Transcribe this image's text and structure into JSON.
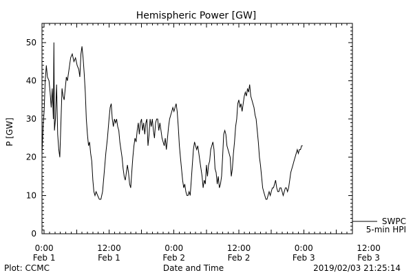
{
  "chart_data": {
    "type": "line",
    "title": "Hemispheric Power [GW]",
    "ylabel": "P [GW]",
    "xlabel": "Date and Time",
    "ylim": [
      0,
      55
    ],
    "yticks": [
      0,
      10,
      20,
      30,
      40,
      50
    ],
    "xlim": [
      -0.4,
      57.0
    ],
    "x_units": "hours since 2019-02-01 00:00",
    "xticks": [
      {
        "x": 0,
        "time": "0:00",
        "date": "Feb 1"
      },
      {
        "x": 12,
        "time": "12:00",
        "date": "Feb 1"
      },
      {
        "x": 24,
        "time": "0:00",
        "date": "Feb 2"
      },
      {
        "x": 36,
        "time": "12:00",
        "date": "Feb 2"
      },
      {
        "x": 48,
        "time": "0:00",
        "date": "Feb 3"
      },
      {
        "x": 60,
        "time": "12:00",
        "date": "Feb 3"
      }
    ],
    "grid": false,
    "legend_lines": [
      "SWPC",
      "5-min HPI"
    ],
    "footer_left": "Plot: CCMC",
    "footer_right": "2019/02/03 21:25:14",
    "series": [
      {
        "name": "SWPC",
        "points": [
          [
            -0.4,
            21
          ],
          [
            -0.2,
            28
          ],
          [
            0.0,
            32
          ],
          [
            0.2,
            40
          ],
          [
            0.4,
            44
          ],
          [
            0.6,
            41
          ],
          [
            0.9,
            40
          ],
          [
            1.1,
            37
          ],
          [
            1.3,
            33
          ],
          [
            1.5,
            38
          ],
          [
            1.7,
            30
          ],
          [
            1.8,
            50
          ],
          [
            1.9,
            27
          ],
          [
            2.1,
            30
          ],
          [
            2.3,
            39
          ],
          [
            2.5,
            26
          ],
          [
            2.7,
            22
          ],
          [
            2.9,
            20
          ],
          [
            3.1,
            29
          ],
          [
            3.3,
            38
          ],
          [
            3.5,
            36
          ],
          [
            3.7,
            35
          ],
          [
            3.9,
            38
          ],
          [
            4.1,
            41
          ],
          [
            4.3,
            40
          ],
          [
            4.6,
            43
          ],
          [
            4.9,
            46
          ],
          [
            5.2,
            47
          ],
          [
            5.5,
            45
          ],
          [
            5.8,
            46
          ],
          [
            6.1,
            44
          ],
          [
            6.4,
            43
          ],
          [
            6.6,
            41
          ],
          [
            6.8,
            47
          ],
          [
            7.0,
            49
          ],
          [
            7.2,
            46
          ],
          [
            7.4,
            42
          ],
          [
            7.6,
            37
          ],
          [
            7.8,
            30
          ],
          [
            8.0,
            26
          ],
          [
            8.2,
            23
          ],
          [
            8.4,
            24
          ],
          [
            8.6,
            21
          ],
          [
            8.8,
            19
          ],
          [
            9.0,
            14
          ],
          [
            9.2,
            11
          ],
          [
            9.4,
            10
          ],
          [
            9.6,
            11
          ],
          [
            9.9,
            10
          ],
          [
            10.2,
            9
          ],
          [
            10.5,
            9
          ],
          [
            10.8,
            11
          ],
          [
            11.1,
            16
          ],
          [
            11.4,
            21
          ],
          [
            11.7,
            25
          ],
          [
            12.0,
            30
          ],
          [
            12.2,
            33
          ],
          [
            12.4,
            34
          ],
          [
            12.6,
            30
          ],
          [
            12.8,
            28
          ],
          [
            13.0,
            30
          ],
          [
            13.2,
            29
          ],
          [
            13.4,
            30
          ],
          [
            13.6,
            28
          ],
          [
            13.8,
            27
          ],
          [
            14.0,
            24
          ],
          [
            14.2,
            22
          ],
          [
            14.4,
            20
          ],
          [
            14.6,
            17
          ],
          [
            14.8,
            15
          ],
          [
            15.0,
            14
          ],
          [
            15.2,
            16
          ],
          [
            15.4,
            18
          ],
          [
            15.6,
            16
          ],
          [
            15.8,
            13
          ],
          [
            16.0,
            12
          ],
          [
            16.2,
            16
          ],
          [
            16.4,
            20
          ],
          [
            16.6,
            23
          ],
          [
            16.8,
            25
          ],
          [
            17.0,
            24
          ],
          [
            17.2,
            27
          ],
          [
            17.4,
            29
          ],
          [
            17.6,
            26
          ],
          [
            17.8,
            29
          ],
          [
            18.0,
            30
          ],
          [
            18.2,
            27
          ],
          [
            18.4,
            29
          ],
          [
            18.6,
            26
          ],
          [
            18.8,
            29
          ],
          [
            19.0,
            30
          ],
          [
            19.2,
            23
          ],
          [
            19.4,
            26
          ],
          [
            19.6,
            30
          ],
          [
            19.8,
            28
          ],
          [
            20.0,
            30
          ],
          [
            20.2,
            27
          ],
          [
            20.4,
            25
          ],
          [
            20.6,
            29
          ],
          [
            20.8,
            30
          ],
          [
            21.0,
            30
          ],
          [
            21.2,
            27
          ],
          [
            21.4,
            29
          ],
          [
            21.6,
            27
          ],
          [
            21.8,
            25
          ],
          [
            22.0,
            24
          ],
          [
            22.2,
            23
          ],
          [
            22.4,
            25
          ],
          [
            22.6,
            22
          ],
          [
            22.8,
            25
          ],
          [
            23.0,
            28
          ],
          [
            23.2,
            30
          ],
          [
            23.4,
            31
          ],
          [
            23.6,
            32
          ],
          [
            23.8,
            33
          ],
          [
            24.0,
            32
          ],
          [
            24.2,
            33
          ],
          [
            24.4,
            34
          ],
          [
            24.6,
            32
          ],
          [
            24.8,
            28
          ],
          [
            25.0,
            23
          ],
          [
            25.2,
            20
          ],
          [
            25.4,
            17
          ],
          [
            25.6,
            14
          ],
          [
            25.8,
            12
          ],
          [
            26.0,
            13
          ],
          [
            26.2,
            11
          ],
          [
            26.4,
            10
          ],
          [
            26.6,
            10
          ],
          [
            26.8,
            11
          ],
          [
            27.0,
            10
          ],
          [
            27.2,
            14
          ],
          [
            27.4,
            18
          ],
          [
            27.6,
            22
          ],
          [
            27.8,
            24
          ],
          [
            28.0,
            23
          ],
          [
            28.2,
            22
          ],
          [
            28.4,
            23
          ],
          [
            28.6,
            21
          ],
          [
            28.8,
            19
          ],
          [
            29.0,
            17
          ],
          [
            29.2,
            15
          ],
          [
            29.4,
            12
          ],
          [
            29.6,
            14
          ],
          [
            29.8,
            13
          ],
          [
            30.0,
            18
          ],
          [
            30.2,
            15
          ],
          [
            30.4,
            18
          ],
          [
            30.6,
            19
          ],
          [
            30.8,
            22
          ],
          [
            31.0,
            23
          ],
          [
            31.2,
            24
          ],
          [
            31.4,
            22
          ],
          [
            31.6,
            17
          ],
          [
            31.8,
            16
          ],
          [
            32.0,
            13
          ],
          [
            32.2,
            15
          ],
          [
            32.4,
            12
          ],
          [
            32.6,
            13
          ],
          [
            32.8,
            15
          ],
          [
            33.0,
            20
          ],
          [
            33.2,
            26
          ],
          [
            33.4,
            27
          ],
          [
            33.6,
            26
          ],
          [
            33.8,
            23
          ],
          [
            34.0,
            22
          ],
          [
            34.2,
            21
          ],
          [
            34.4,
            20
          ],
          [
            34.6,
            15
          ],
          [
            34.8,
            17
          ],
          [
            35.0,
            21
          ],
          [
            35.2,
            24
          ],
          [
            35.4,
            28
          ],
          [
            35.6,
            30
          ],
          [
            35.8,
            34
          ],
          [
            36.0,
            35
          ],
          [
            36.2,
            33
          ],
          [
            36.4,
            34
          ],
          [
            36.6,
            32
          ],
          [
            36.8,
            34
          ],
          [
            37.0,
            36
          ],
          [
            37.2,
            37
          ],
          [
            37.4,
            36
          ],
          [
            37.6,
            38
          ],
          [
            37.8,
            37
          ],
          [
            38.0,
            39
          ],
          [
            38.2,
            36
          ],
          [
            38.4,
            35
          ],
          [
            38.6,
            34
          ],
          [
            38.8,
            33
          ],
          [
            39.0,
            31
          ],
          [
            39.2,
            30
          ],
          [
            39.4,
            27
          ],
          [
            39.6,
            24
          ],
          [
            39.8,
            20
          ],
          [
            40.0,
            18
          ],
          [
            40.2,
            15
          ],
          [
            40.4,
            12
          ],
          [
            40.6,
            11
          ],
          [
            40.8,
            10
          ],
          [
            41.0,
            9
          ],
          [
            41.2,
            9
          ],
          [
            41.4,
            10
          ],
          [
            41.6,
            11
          ],
          [
            41.8,
            10
          ],
          [
            42.0,
            11
          ],
          [
            42.2,
            12
          ],
          [
            42.4,
            12
          ],
          [
            42.6,
            13
          ],
          [
            42.8,
            14
          ],
          [
            43.0,
            12
          ],
          [
            43.2,
            11
          ],
          [
            43.4,
            11
          ],
          [
            43.6,
            12
          ],
          [
            43.8,
            12
          ],
          [
            44.0,
            11
          ],
          [
            44.2,
            10
          ],
          [
            44.4,
            11
          ],
          [
            44.6,
            12
          ],
          [
            44.8,
            12
          ],
          [
            45.0,
            11
          ],
          [
            45.2,
            12
          ],
          [
            45.4,
            14
          ],
          [
            45.6,
            16
          ],
          [
            45.8,
            17
          ],
          [
            46.0,
            18
          ],
          [
            46.2,
            19
          ],
          [
            46.4,
            20
          ],
          [
            46.6,
            21
          ],
          [
            46.8,
            22
          ],
          [
            47.0,
            21
          ],
          [
            47.2,
            22
          ],
          [
            47.4,
            22
          ],
          [
            47.6,
            23
          ],
          [
            47.8,
            23
          ]
        ]
      }
    ]
  }
}
